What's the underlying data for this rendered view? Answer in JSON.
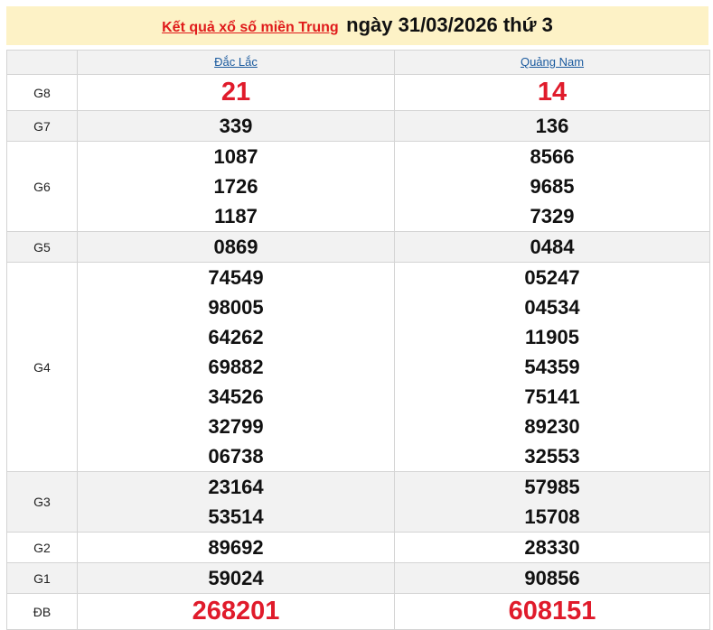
{
  "header": {
    "link_text": "Kết quả xổ số miền Trung",
    "date_text": "ngày 31/03/2026 thứ 3"
  },
  "colors": {
    "accent_red": "#e01b2b",
    "link_blue": "#1a5a9e",
    "header_bg": "#fdf2c6"
  },
  "provinces": [
    "Đắc Lắc",
    "Quảng Nam"
  ],
  "prizes": [
    {
      "label": "G8",
      "red": true,
      "values": [
        [
          "21"
        ],
        [
          "14"
        ]
      ]
    },
    {
      "label": "G7",
      "values": [
        [
          "339"
        ],
        [
          "136"
        ]
      ]
    },
    {
      "label": "G6",
      "values": [
        [
          "1087",
          "1726",
          "1187"
        ],
        [
          "8566",
          "9685",
          "7329"
        ]
      ]
    },
    {
      "label": "G5",
      "values": [
        [
          "0869"
        ],
        [
          "0484"
        ]
      ]
    },
    {
      "label": "G4",
      "values": [
        [
          "74549",
          "98005",
          "64262",
          "69882",
          "34526",
          "32799",
          "06738"
        ],
        [
          "05247",
          "04534",
          "11905",
          "54359",
          "75141",
          "89230",
          "32553"
        ]
      ]
    },
    {
      "label": "G3",
      "values": [
        [
          "23164",
          "53514"
        ],
        [
          "57985",
          "15708"
        ]
      ]
    },
    {
      "label": "G2",
      "values": [
        [
          "89692"
        ],
        [
          "28330"
        ]
      ]
    },
    {
      "label": "G1",
      "values": [
        [
          "59024"
        ],
        [
          "90856"
        ]
      ]
    },
    {
      "label": "ĐB",
      "red": true,
      "values": [
        [
          "268201"
        ],
        [
          "608151"
        ]
      ]
    }
  ]
}
